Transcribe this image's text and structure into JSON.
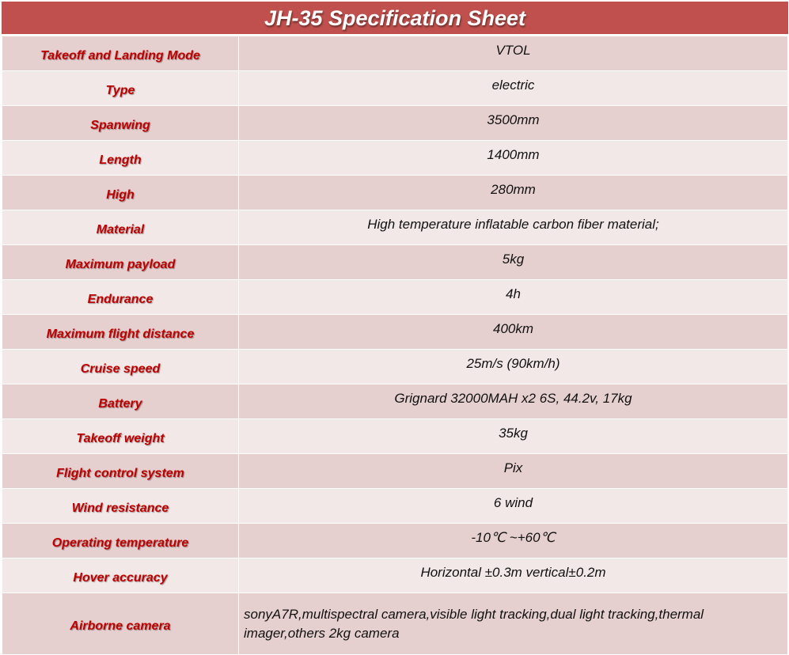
{
  "title": "JH-35 Specification Sheet",
  "colors": {
    "header": "#C0504D",
    "label_text": "#C00000",
    "row_dark": "#E6CFCF",
    "row_light": "#F2E8E8"
  },
  "rows": [
    {
      "label": "Takeoff and Landing Mode",
      "value": "VTOL"
    },
    {
      "label": "Type",
      "value": "electric"
    },
    {
      "label": "Spanwing",
      "value": "3500mm"
    },
    {
      "label": "Length",
      "value": "1400mm"
    },
    {
      "label": "High",
      "value": "280mm"
    },
    {
      "label": "Material",
      "value": "High temperature inflatable carbon fiber material;"
    },
    {
      "label": "Maximum payload",
      "value": "5kg"
    },
    {
      "label": "Endurance",
      "value": "4h"
    },
    {
      "label": "Maximum flight distance",
      "value": "400km"
    },
    {
      "label": "Cruise speed",
      "value": "25m/s (90km/h)"
    },
    {
      "label": "Battery",
      "value": "Grignard 32000MAH x2 6S, 44.2v, 17kg"
    },
    {
      "label": "Takeoff weight",
      "value": "35kg"
    },
    {
      "label": "Flight control system",
      "value": "Pix"
    },
    {
      "label": "Wind resistance",
      "value": "6 wind"
    },
    {
      "label": "Operating temperature",
      "value": "-10℃ ~+60℃"
    },
    {
      "label": "Hover accuracy",
      "value": "Horizontal  ±0.3m vertical±0.2m"
    },
    {
      "label": "Airborne camera",
      "value": "sonyA7R,multispectral camera,visible light tracking,dual light tracking,thermal imager,others 2kg camera"
    }
  ]
}
